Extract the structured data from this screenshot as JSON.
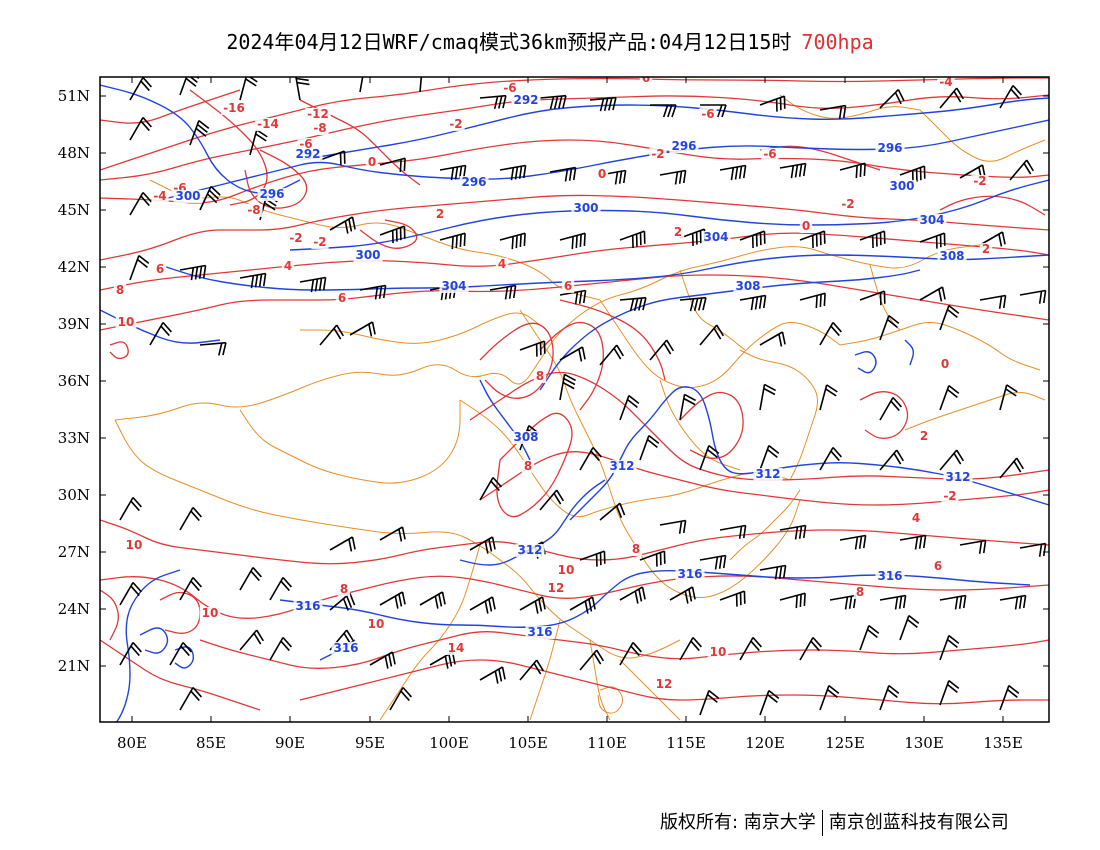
{
  "header": {
    "title": "2024年04月12日WRF/cmaq模式36km预报产品:04月12日15时",
    "level": "700hpa"
  },
  "map": {
    "lat_labels": [
      "51N",
      "48N",
      "45N",
      "42N",
      "39N",
      "36N",
      "33N",
      "30N",
      "27N",
      "24N",
      "21N"
    ],
    "lon_labels": [
      "80E",
      "85E",
      "90E",
      "95E",
      "100E",
      "105E",
      "110E",
      "115E",
      "120E",
      "125E",
      "130E",
      "135E"
    ],
    "colors": {
      "temperature_contour": "#e03838",
      "height_contour": "#2244dd",
      "boundaries": "#e8902a",
      "wind_barbs": "#000000"
    },
    "temperature_labels": [
      "-16",
      "-14",
      "-12",
      "-8",
      "-6",
      "-4",
      "-2",
      "0",
      "2",
      "4",
      "6",
      "8",
      "10",
      "12",
      "14"
    ],
    "height_labels": [
      "292",
      "296",
      "300",
      "304",
      "308",
      "312",
      "316"
    ]
  },
  "footer": {
    "copyright": "版权所有: 南京大学",
    "company": "南京创蓝科技有限公司"
  }
}
